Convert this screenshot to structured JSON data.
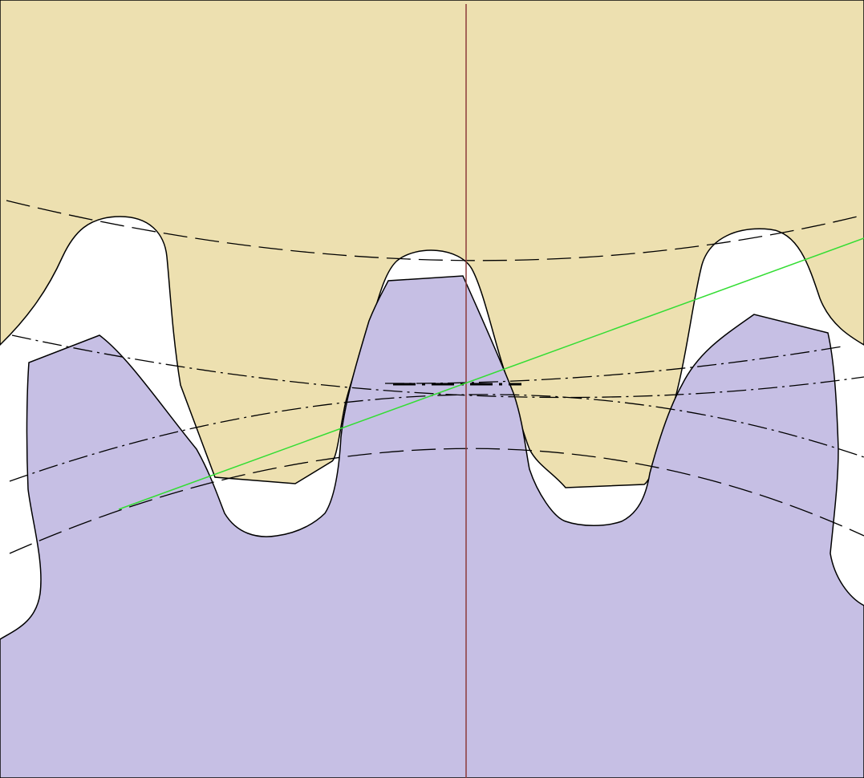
{
  "colors": {
    "background": "#ffffff",
    "upper_gear_fill": "#ede0b0",
    "lower_gear_fill": "#c6bfe4",
    "outline": "#000000",
    "center_line": "#8b3a3a",
    "line_of_action": "#33dd33"
  },
  "line_styles": {
    "outline": "solid",
    "pitch_circles": "dash-dot",
    "root_and_tip_circles": "dashed",
    "center_line": "solid",
    "line_of_action": "solid"
  }
}
